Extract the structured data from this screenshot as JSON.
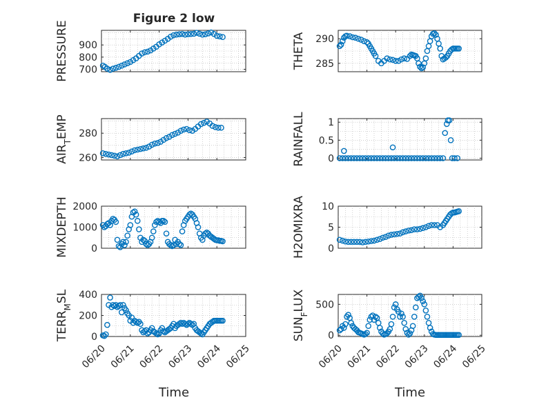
{
  "figure_title": "Figure 2 low",
  "xlabel": "Time",
  "x_tick_labels": [
    "06/20",
    "06/21",
    "06/22",
    "06/23",
    "06/24",
    "06/25"
  ],
  "marker_color": "#0072bd",
  "chart_data": [
    {
      "type": "scatter",
      "id": "pressure",
      "ylabel": "PRESSURE",
      "xlim": [
        0,
        5
      ],
      "ylim": [
        680,
        1020
      ],
      "yticks": [
        700,
        800,
        900
      ],
      "x": [
        0.05,
        0.12,
        0.2,
        0.3,
        0.4,
        0.5,
        0.6,
        0.7,
        0.8,
        0.9,
        1.0,
        1.1,
        1.2,
        1.3,
        1.4,
        1.5,
        1.6,
        1.7,
        1.8,
        1.9,
        2.0,
        2.1,
        2.2,
        2.3,
        2.4,
        2.5,
        2.6,
        2.7,
        2.8,
        2.9,
        3.0,
        3.1,
        3.2,
        3.3,
        3.4,
        3.5,
        3.6,
        3.7,
        3.8,
        3.9,
        4.0,
        4.1,
        4.2
      ],
      "y": [
        730,
        720,
        705,
        695,
        705,
        712,
        720,
        730,
        740,
        750,
        760,
        775,
        790,
        810,
        830,
        840,
        845,
        855,
        870,
        885,
        905,
        920,
        935,
        950,
        968,
        980,
        985,
        988,
        990,
        985,
        988,
        990,
        992,
        1000,
        992,
        985,
        988,
        995,
        1003,
        990,
        975,
        970,
        965
      ]
    },
    {
      "type": "scatter",
      "id": "theta",
      "ylabel": "THETA",
      "xlim": [
        0,
        5
      ],
      "ylim": [
        283.3,
        291.7
      ],
      "yticks": [
        285,
        290
      ],
      "x": [
        0.05,
        0.1,
        0.15,
        0.2,
        0.25,
        0.3,
        0.4,
        0.5,
        0.6,
        0.7,
        0.8,
        0.9,
        1.0,
        1.05,
        1.1,
        1.15,
        1.2,
        1.25,
        1.3,
        1.4,
        1.5,
        1.6,
        1.7,
        1.8,
        1.9,
        2.0,
        2.1,
        2.2,
        2.3,
        2.4,
        2.5,
        2.55,
        2.6,
        2.65,
        2.7,
        2.75,
        2.8,
        2.85,
        2.9,
        2.95,
        3.0,
        3.05,
        3.1,
        3.15,
        3.2,
        3.25,
        3.3,
        3.35,
        3.4,
        3.45,
        3.5,
        3.55,
        3.6,
        3.65,
        3.7,
        3.75,
        3.8,
        3.85,
        3.9,
        3.95,
        4.0,
        4.05,
        4.1,
        4.15,
        4.2
      ],
      "y": [
        288.5,
        288.8,
        289.5,
        290.2,
        290.5,
        290.6,
        290.5,
        290.3,
        290.2,
        290.0,
        289.8,
        289.5,
        289.3,
        289.0,
        288.5,
        288.0,
        287.5,
        287.0,
        286.5,
        285.5,
        285.0,
        285.5,
        286.0,
        285.8,
        285.7,
        285.5,
        285.5,
        285.8,
        286.0,
        285.9,
        286.5,
        286.8,
        286.7,
        286.6,
        286.5,
        286.0,
        285.0,
        284.3,
        284.0,
        284.2,
        285.0,
        286.0,
        287.5,
        288.5,
        289.5,
        290.5,
        291.0,
        291.1,
        290.8,
        290.0,
        289.0,
        288.0,
        286.5,
        285.8,
        286.0,
        286.2,
        286.5,
        287.0,
        287.5,
        287.8,
        288.0,
        288.0,
        288.0,
        288.0,
        288.0
      ]
    },
    {
      "type": "scatter",
      "id": "air_temp",
      "ylabel": "AIR_TEMP",
      "xlim": [
        0,
        5
      ],
      "ylim": [
        258,
        292
      ],
      "yticks": [
        260,
        280
      ],
      "x": [
        0.05,
        0.15,
        0.25,
        0.35,
        0.45,
        0.55,
        0.65,
        0.75,
        0.85,
        0.95,
        1.05,
        1.15,
        1.25,
        1.35,
        1.45,
        1.55,
        1.65,
        1.75,
        1.85,
        1.95,
        2.05,
        2.15,
        2.25,
        2.35,
        2.45,
        2.55,
        2.65,
        2.75,
        2.85,
        2.95,
        3.05,
        3.15,
        3.25,
        3.35,
        3.45,
        3.55,
        3.65,
        3.75,
        3.85,
        3.95,
        4.05,
        4.15
      ],
      "y": [
        263.5,
        263.0,
        262.5,
        262.0,
        261.5,
        261.0,
        262.0,
        263.0,
        263.5,
        264.0,
        265.0,
        266.0,
        266.5,
        267.0,
        267.5,
        268.0,
        269.0,
        270.5,
        271.5,
        272.0,
        273.0,
        274.5,
        276.0,
        277.0,
        278.5,
        279.5,
        280.5,
        282.0,
        283.0,
        283.5,
        282.5,
        282.0,
        283.5,
        285.5,
        287.5,
        288.5,
        289.5,
        288.0,
        286.0,
        285.0,
        284.5,
        284.5
      ]
    },
    {
      "type": "scatter",
      "id": "rainfall",
      "ylabel": "RAINFALL",
      "xlim": [
        0,
        5
      ],
      "ylim": [
        -0.05,
        1.1
      ],
      "yticks": [
        0,
        0.5,
        1
      ],
      "x": [
        0.05,
        0.15,
        0.2,
        0.25,
        0.35,
        0.45,
        0.55,
        0.65,
        0.75,
        0.85,
        0.95,
        1.05,
        1.15,
        1.25,
        1.35,
        1.45,
        1.55,
        1.65,
        1.75,
        1.85,
        1.9,
        1.95,
        2.05,
        2.15,
        2.25,
        2.35,
        2.45,
        2.55,
        2.65,
        2.75,
        2.85,
        2.95,
        3.05,
        3.15,
        3.25,
        3.35,
        3.45,
        3.55,
        3.65,
        3.72,
        3.78,
        3.82,
        3.87,
        3.92,
        3.97,
        4.05,
        4.15
      ],
      "y": [
        0,
        0,
        0.2,
        0,
        0,
        0,
        0,
        0,
        0,
        0,
        0,
        0,
        0,
        0,
        0,
        0,
        0,
        0,
        0,
        0,
        0.3,
        0,
        0,
        0,
        0,
        0,
        0,
        0,
        0,
        0,
        0,
        0,
        0,
        0,
        0,
        0,
        0,
        0,
        0,
        0.7,
        0.95,
        1.05,
        1.05,
        0.5,
        0,
        0,
        0
      ]
    },
    {
      "type": "scatter",
      "id": "mixdepth",
      "ylabel": "MIXDEPTH",
      "xlim": [
        0,
        5
      ],
      "ylim": [
        0,
        2000
      ],
      "yticks": [
        0,
        1000,
        2000
      ],
      "x": [
        0.05,
        0.1,
        0.15,
        0.2,
        0.25,
        0.3,
        0.35,
        0.4,
        0.45,
        0.5,
        0.55,
        0.6,
        0.65,
        0.7,
        0.75,
        0.8,
        0.85,
        0.9,
        0.95,
        1.0,
        1.05,
        1.1,
        1.15,
        1.2,
        1.25,
        1.3,
        1.35,
        1.4,
        1.45,
        1.5,
        1.55,
        1.6,
        1.65,
        1.7,
        1.75,
        1.8,
        1.85,
        1.9,
        1.95,
        2.0,
        2.05,
        2.1,
        2.15,
        2.2,
        2.25,
        2.3,
        2.35,
        2.4,
        2.45,
        2.5,
        2.55,
        2.6,
        2.65,
        2.7,
        2.75,
        2.8,
        2.85,
        2.9,
        2.95,
        3.0,
        3.05,
        3.1,
        3.15,
        3.2,
        3.25,
        3.3,
        3.35,
        3.4,
        3.45,
        3.5,
        3.55,
        3.6,
        3.65,
        3.7,
        3.75,
        3.8,
        3.85,
        3.9,
        3.95,
        4.0,
        4.05,
        4.1,
        4.15,
        4.2
      ],
      "y": [
        1100,
        1000,
        1050,
        1150,
        1200,
        1100,
        1300,
        1400,
        1350,
        1250,
        400,
        100,
        50,
        200,
        300,
        150,
        300,
        600,
        900,
        1100,
        1500,
        1700,
        1750,
        1600,
        1300,
        900,
        500,
        300,
        400,
        350,
        200,
        150,
        200,
        300,
        500,
        800,
        1100,
        1250,
        1300,
        1250,
        1200,
        1300,
        1300,
        1250,
        700,
        300,
        200,
        150,
        100,
        150,
        400,
        200,
        300,
        200,
        150,
        800,
        1100,
        1300,
        1400,
        1500,
        1600,
        1650,
        1600,
        1500,
        1400,
        1200,
        1000,
        700,
        500,
        400,
        600,
        700,
        750,
        700,
        600,
        550,
        500,
        450,
        400,
        380,
        380,
        350,
        350,
        330
      ]
    },
    {
      "type": "scatter",
      "id": "h2omixra",
      "ylabel": "H2OMIXRA",
      "xlim": [
        0,
        5
      ],
      "ylim": [
        0,
        10
      ],
      "yticks": [
        0,
        5,
        10
      ],
      "x": [
        0.05,
        0.15,
        0.25,
        0.35,
        0.45,
        0.55,
        0.65,
        0.75,
        0.85,
        0.95,
        1.05,
        1.15,
        1.25,
        1.35,
        1.45,
        1.55,
        1.65,
        1.75,
        1.85,
        1.95,
        2.05,
        2.15,
        2.25,
        2.35,
        2.45,
        2.55,
        2.65,
        2.75,
        2.85,
        2.95,
        3.05,
        3.15,
        3.25,
        3.35,
        3.45,
        3.55,
        3.65,
        3.7,
        3.75,
        3.8,
        3.85,
        3.9,
        3.95,
        4.0,
        4.05,
        4.1,
        4.15,
        4.2
      ],
      "y": [
        2.0,
        1.8,
        1.6,
        1.5,
        1.5,
        1.5,
        1.5,
        1.5,
        1.4,
        1.5,
        1.6,
        1.7,
        1.8,
        2.0,
        2.2,
        2.5,
        2.7,
        3.0,
        3.2,
        3.3,
        3.4,
        3.5,
        3.8,
        4.0,
        4.2,
        4.3,
        4.5,
        4.5,
        4.6,
        4.8,
        5.0,
        5.3,
        5.5,
        5.5,
        5.5,
        5.0,
        5.5,
        6.0,
        6.5,
        7.0,
        7.5,
        8.0,
        8.3,
        8.5,
        8.5,
        8.6,
        8.7,
        8.8
      ]
    },
    {
      "type": "scatter",
      "id": "terr_msl",
      "ylabel": "TERR_MSL",
      "xlim": [
        0,
        5
      ],
      "ylim": [
        0,
        400
      ],
      "yticks": [
        0,
        200,
        400
      ],
      "x": [
        0.05,
        0.1,
        0.15,
        0.2,
        0.25,
        0.3,
        0.35,
        0.4,
        0.45,
        0.5,
        0.55,
        0.6,
        0.65,
        0.7,
        0.75,
        0.8,
        0.85,
        0.9,
        0.95,
        1.0,
        1.05,
        1.1,
        1.15,
        1.2,
        1.25,
        1.3,
        1.35,
        1.4,
        1.45,
        1.5,
        1.55,
        1.6,
        1.65,
        1.7,
        1.75,
        1.8,
        1.85,
        1.9,
        1.95,
        2.0,
        2.05,
        2.1,
        2.15,
        2.2,
        2.25,
        2.3,
        2.35,
        2.4,
        2.45,
        2.5,
        2.55,
        2.6,
        2.65,
        2.7,
        2.75,
        2.8,
        2.85,
        2.9,
        2.95,
        3.0,
        3.05,
        3.1,
        3.15,
        3.2,
        3.25,
        3.3,
        3.35,
        3.4,
        3.45,
        3.5,
        3.55,
        3.6,
        3.65,
        3.7,
        3.75,
        3.8,
        3.85,
        3.9,
        3.95,
        4.0,
        4.05,
        4.1,
        4.15,
        4.2
      ],
      "y": [
        10,
        5,
        20,
        110,
        300,
        370,
        280,
        300,
        290,
        300,
        280,
        290,
        300,
        230,
        300,
        270,
        250,
        220,
        200,
        150,
        180,
        130,
        150,
        140,
        130,
        140,
        120,
        60,
        40,
        50,
        60,
        30,
        40,
        60,
        80,
        50,
        40,
        30,
        20,
        30,
        60,
        80,
        50,
        40,
        50,
        60,
        70,
        80,
        100,
        120,
        80,
        100,
        110,
        120,
        130,
        120,
        130,
        120,
        110,
        120,
        130,
        120,
        110,
        120,
        80,
        60,
        50,
        40,
        30,
        20,
        40,
        60,
        80,
        100,
        120,
        130,
        140,
        150,
        150,
        150,
        150,
        150,
        150,
        150
      ]
    },
    {
      "type": "scatter",
      "id": "sun_flux",
      "ylabel": "SUN_FLUX",
      "xlim": [
        0,
        5
      ],
      "ylim": [
        -20,
        660
      ],
      "yticks": [
        0,
        500
      ],
      "x": [
        0.05,
        0.1,
        0.15,
        0.2,
        0.25,
        0.3,
        0.35,
        0.4,
        0.45,
        0.5,
        0.55,
        0.6,
        0.65,
        0.7,
        0.75,
        0.8,
        0.85,
        0.9,
        0.95,
        1.0,
        1.05,
        1.1,
        1.15,
        1.2,
        1.25,
        1.3,
        1.35,
        1.4,
        1.45,
        1.5,
        1.55,
        1.6,
        1.65,
        1.7,
        1.75,
        1.8,
        1.85,
        1.9,
        1.95,
        2.0,
        2.05,
        2.1,
        2.15,
        2.2,
        2.25,
        2.3,
        2.35,
        2.4,
        2.45,
        2.5,
        2.55,
        2.6,
        2.65,
        2.7,
        2.75,
        2.8,
        2.85,
        2.9,
        2.95,
        3.0,
        3.05,
        3.1,
        3.15,
        3.2,
        3.25,
        3.3,
        3.35,
        3.4,
        3.45,
        3.5,
        3.55,
        3.6,
        3.65,
        3.7,
        3.75,
        3.8,
        3.85,
        3.9,
        3.95,
        4.0,
        4.05,
        4.1,
        4.15,
        4.2
      ],
      "y": [
        80,
        100,
        150,
        120,
        180,
        300,
        330,
        280,
        200,
        150,
        120,
        100,
        80,
        50,
        40,
        30,
        20,
        10,
        20,
        40,
        150,
        250,
        300,
        320,
        250,
        300,
        280,
        200,
        120,
        60,
        30,
        10,
        20,
        30,
        60,
        100,
        180,
        300,
        450,
        500,
        420,
        380,
        300,
        350,
        300,
        200,
        100,
        40,
        10,
        30,
        80,
        150,
        300,
        450,
        600,
        620,
        640,
        600,
        550,
        500,
        400,
        300,
        200,
        120,
        60,
        20,
        10,
        5,
        5,
        5,
        5,
        5,
        5,
        5,
        5,
        5,
        5,
        5,
        5,
        5,
        5,
        5,
        5,
        5
      ]
    }
  ]
}
